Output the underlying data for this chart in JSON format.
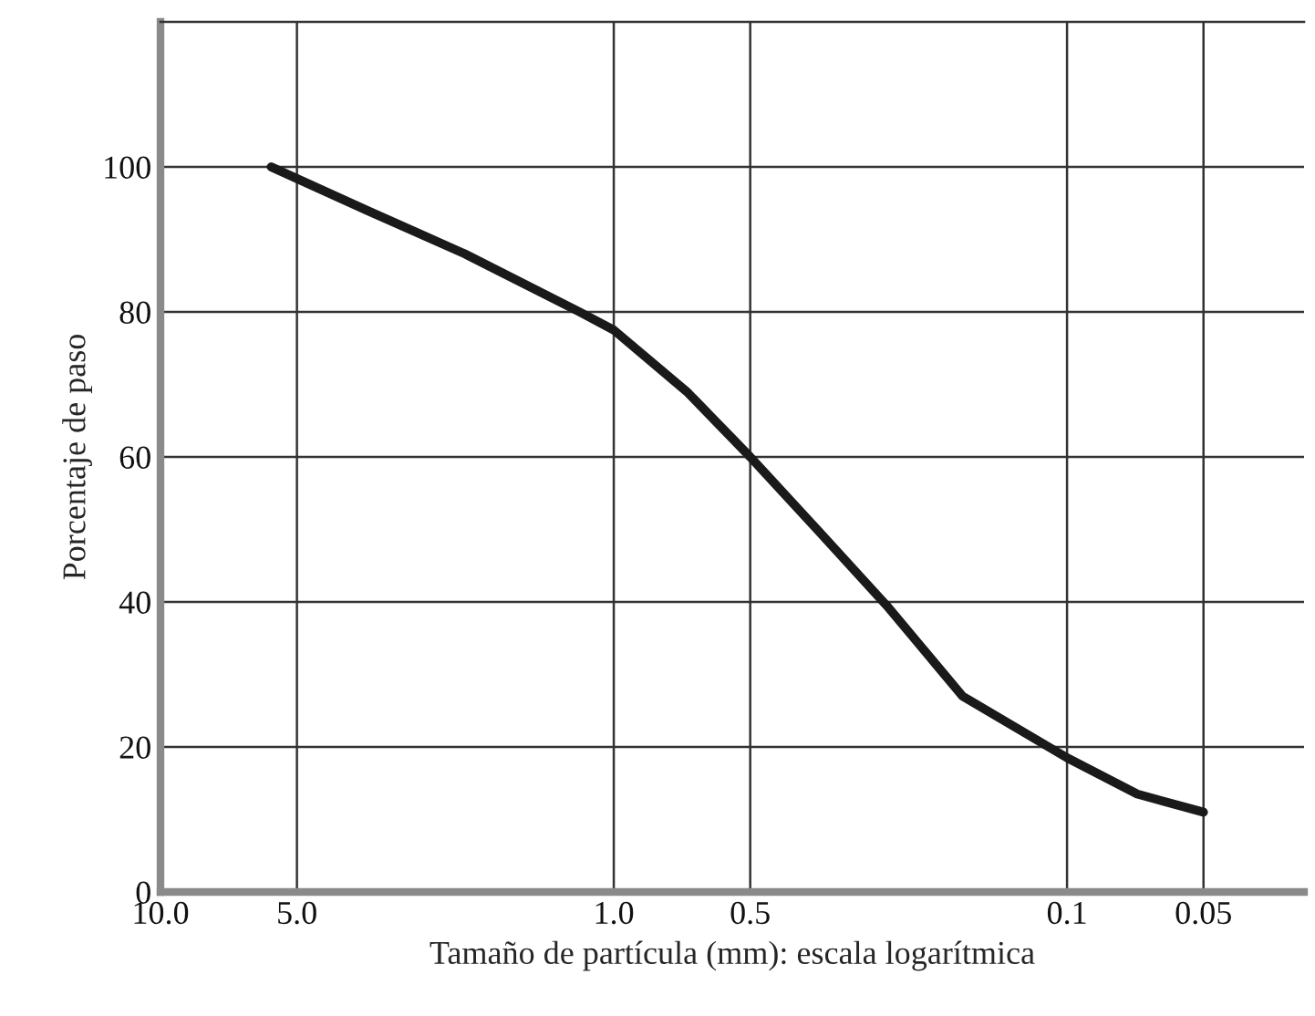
{
  "chart_data": {
    "type": "line",
    "xlabel": "Tamaño de partícula (mm): escala logarítmica",
    "ylabel": "Porcentaje de paso",
    "log": "x",
    "grid": true,
    "legend": false,
    "marker": "none",
    "line_style": "solid",
    "xlim": [
      10,
      0.03
    ],
    "xticks": [
      {
        "value": 10,
        "label": "10.0"
      },
      {
        "value": 5,
        "label": "5.0"
      },
      {
        "value": 1,
        "label": "1.0"
      },
      0.5,
      0.1,
      0.05
    ],
    "ylim": [
      0,
      120
    ],
    "yticks": [
      0,
      20,
      40,
      60,
      80,
      100
    ],
    "series": [
      {
        "color": "#1a1a1a",
        "x": [
          5.7,
          3.5,
          2.13,
          1.19,
          1.0,
          0.69,
          0.5,
          0.35,
          0.25,
          0.17,
          0.1,
          0.07,
          0.05
        ],
        "values": [
          100,
          94,
          88,
          80,
          77.5,
          69,
          60,
          49.5,
          39.5,
          27,
          18.5,
          13.5,
          11
        ]
      }
    ]
  }
}
